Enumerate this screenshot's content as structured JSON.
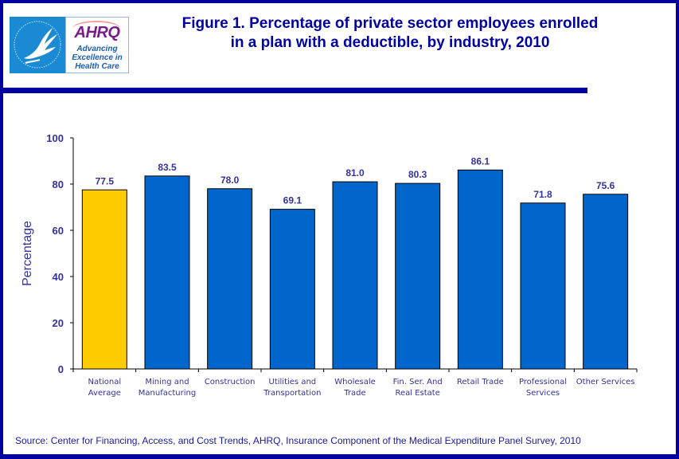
{
  "header": {
    "logo_hhs_alt": "Department of Health & Human Services USA",
    "logo_ahrq_word": "AHRQ",
    "logo_ahrq_tagline": [
      "Advancing",
      "Excellence in",
      "Health Care"
    ],
    "title_lines": [
      "Figure 1. Percentage of private sector employees enrolled",
      "in a plan with a deductible, by industry, 2010"
    ]
  },
  "footer": {
    "source": "Source: Center for Financing, Access, and Cost Trends, AHRQ, Insurance Component of the Medical Expenditure Panel Survey, 2010"
  },
  "chart_data": {
    "type": "bar",
    "title": "Figure 1. Percentage of private sector employees enrolled in a plan with a deductible, by industry, 2010",
    "xlabel": "",
    "ylabel": "Percentage",
    "ylim": [
      0,
      100
    ],
    "yticks": [
      0,
      20,
      40,
      60,
      80,
      100
    ],
    "grid": false,
    "legend": "none",
    "categories": [
      [
        "National",
        "Average"
      ],
      [
        "Mining and",
        "Manufacturing"
      ],
      [
        "Construction"
      ],
      [
        "Utilities and",
        "Transportation"
      ],
      [
        "Wholesale",
        "Trade"
      ],
      [
        "Fin. Ser. And",
        "Real Estate"
      ],
      [
        "Retail Trade"
      ],
      [
        "Professional",
        "Services"
      ],
      [
        "Other Services"
      ]
    ],
    "values": [
      77.5,
      83.5,
      78.0,
      69.1,
      81.0,
      80.3,
      86.1,
      71.8,
      75.6
    ],
    "value_labels": [
      "77.5",
      "83.5",
      "78.0",
      "69.1",
      "81.0",
      "80.3",
      "86.1",
      "71.8",
      "75.6"
    ],
    "colors": {
      "highlight": "#ffcc00",
      "bar": "#0066cc",
      "text": "#333399",
      "axis": "#000000"
    },
    "highlight_index": 0
  }
}
